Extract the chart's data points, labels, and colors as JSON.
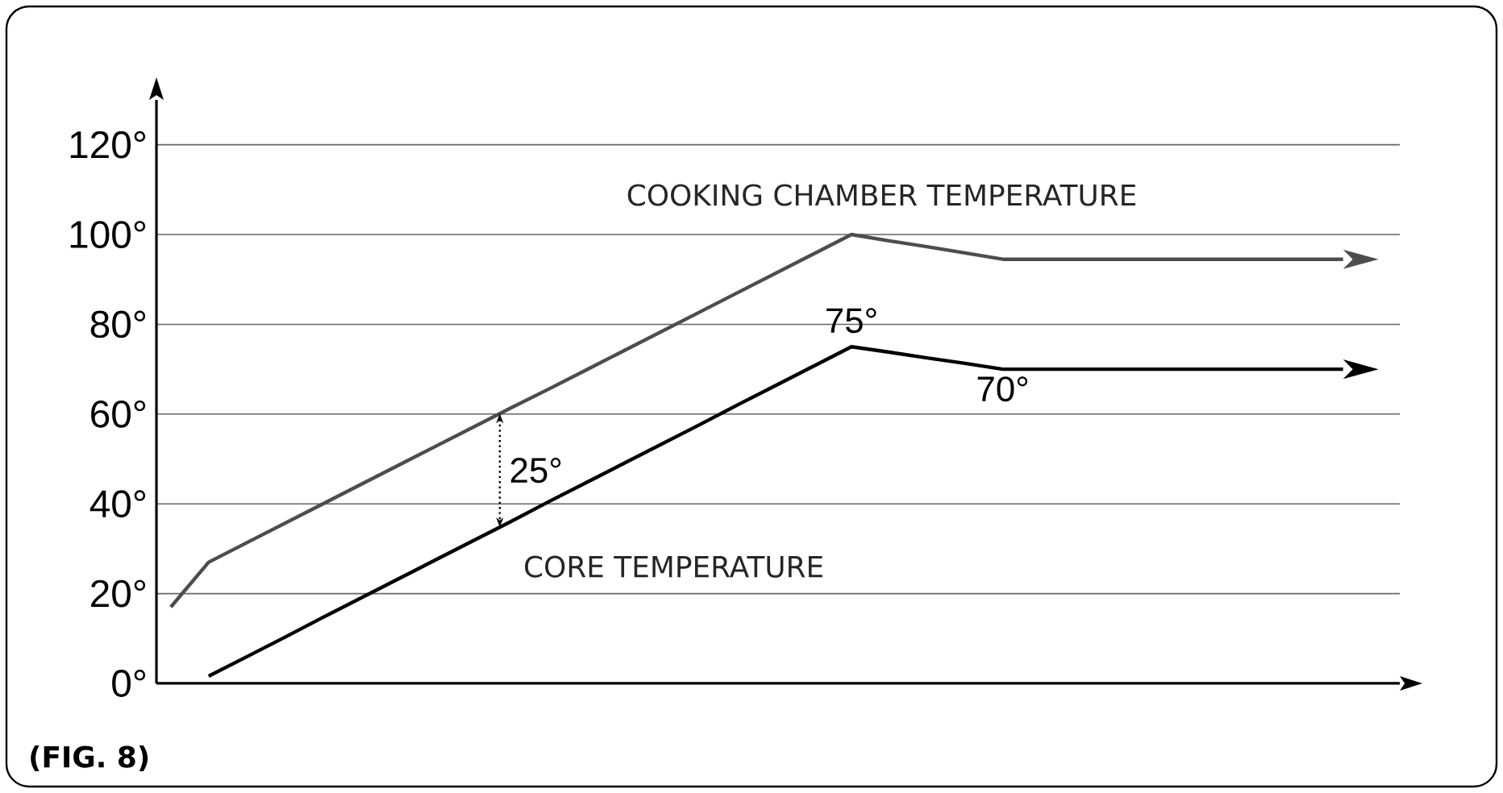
{
  "chart_data": {
    "type": "line",
    "categories": [
      null,
      null,
      null,
      null,
      null,
      null,
      null,
      null,
      null,
      null,
      null,
      null,
      null,
      null,
      null,
      null,
      null,
      null,
      null,
      null,
      null,
      null,
      null,
      null,
      null,
      null,
      null,
      null,
      null,
      null,
      null,
      null
    ],
    "series": [
      {
        "name": "COOKING CHAMBER TEMPERATURE",
        "color": "#4d4d4d",
        "values": [
          17,
          27,
          31.3,
          35.6,
          39.9,
          44.2,
          48.5,
          52.8,
          57.1,
          61.4,
          65.6,
          69.9,
          74.2,
          78.5,
          82.8,
          87.1,
          91.4,
          95.7,
          100,
          98.6,
          97.3,
          95.9,
          94.5,
          94.5,
          94.5,
          94.5,
          94.5,
          94.5,
          94.5,
          94.5,
          94.5,
          94.5
        ]
      },
      {
        "name": "CORE TEMPERATURE",
        "color": "#000000",
        "values": [
          null,
          1.6,
          5.9,
          10.2,
          14.6,
          18.9,
          23.2,
          27.5,
          31.8,
          36.1,
          40.5,
          44.8,
          49.1,
          53.4,
          57.7,
          62.1,
          66.4,
          70.7,
          75,
          73.8,
          72.5,
          71.3,
          70,
          70,
          70,
          70,
          70,
          70,
          70,
          70,
          70,
          70
        ]
      }
    ],
    "ylim": [
      0,
      130
    ],
    "yticks": [
      {
        "value": 0,
        "label": "0°"
      },
      {
        "value": 20,
        "label": "20°"
      },
      {
        "value": 40,
        "label": "40°"
      },
      {
        "value": 60,
        "label": "60°"
      },
      {
        "value": 80,
        "label": "80°"
      },
      {
        "value": 100,
        "label": "100°"
      },
      {
        "value": 120,
        "label": "120°"
      }
    ],
    "tick_labels": "y",
    "grid": "y",
    "marker": "none",
    "line_style": "solid",
    "annotations": [
      "75°",
      "70°",
      "25°",
      "(FIG. 8)"
    ]
  }
}
